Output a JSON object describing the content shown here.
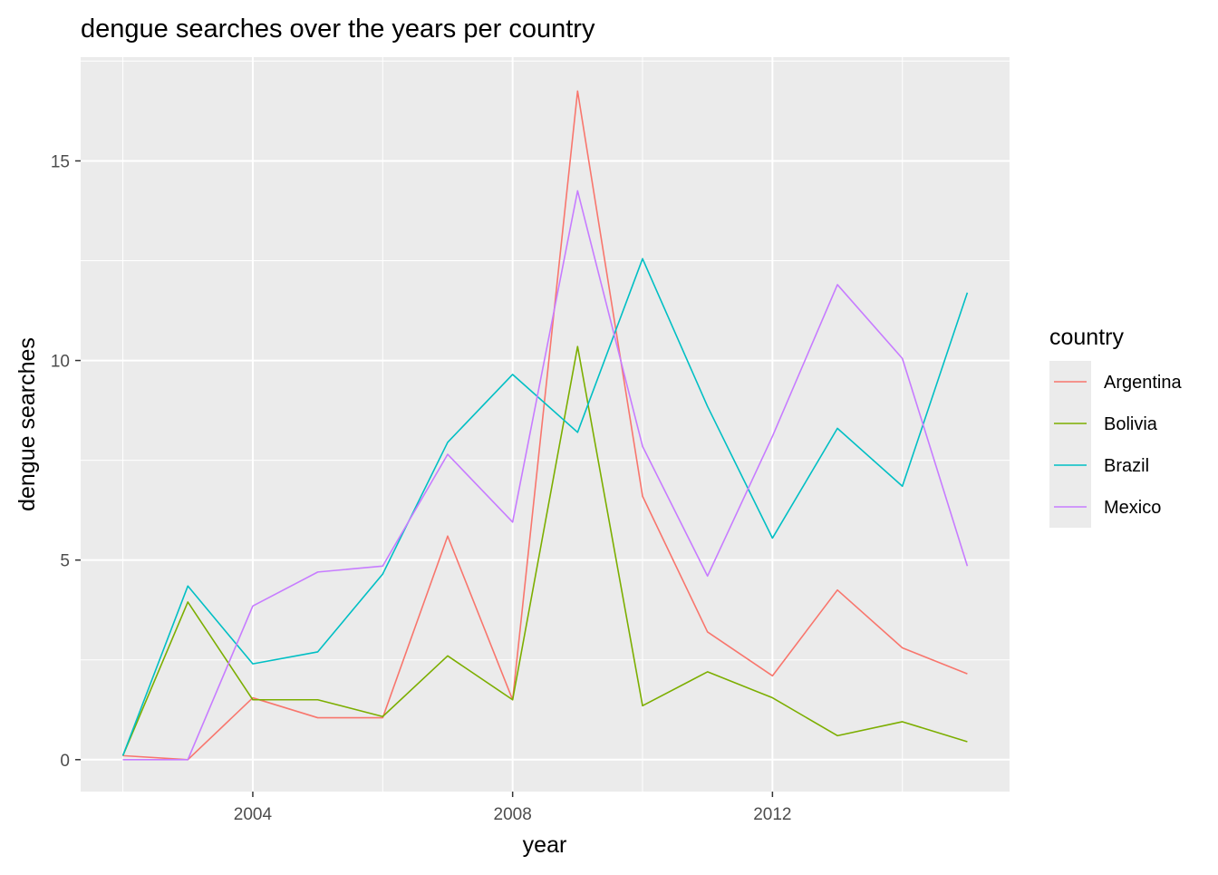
{
  "chart_data": {
    "type": "line",
    "title": "dengue searches over the years per country",
    "xlabel": "year",
    "ylabel": "dengue searches",
    "x": [
      2002,
      2003,
      2004,
      2005,
      2006,
      2007,
      2008,
      2009,
      2010,
      2011,
      2012,
      2013,
      2014,
      2015
    ],
    "xlim": [
      2001.35,
      2015.65
    ],
    "ylim": [
      -0.8,
      17.6
    ],
    "x_ticks": [
      2004,
      2008,
      2012
    ],
    "y_ticks": [
      0,
      5,
      10,
      15
    ],
    "grid": true,
    "legend": {
      "title": "country",
      "position": "right"
    },
    "series": [
      {
        "name": "Argentina",
        "color": "#F8766D",
        "values": [
          0.1,
          0.0,
          1.55,
          1.05,
          1.05,
          5.6,
          1.5,
          16.75,
          6.6,
          3.2,
          2.1,
          4.25,
          2.8,
          2.15
        ]
      },
      {
        "name": "Bolivia",
        "color": "#7CAE00",
        "values": [
          0.1,
          3.95,
          1.5,
          1.5,
          1.08,
          2.6,
          1.5,
          10.35,
          1.35,
          2.2,
          1.55,
          0.6,
          0.95,
          0.45
        ]
      },
      {
        "name": "Brazil",
        "color": "#00BFC4",
        "values": [
          0.1,
          4.35,
          2.4,
          2.7,
          4.65,
          7.95,
          9.65,
          8.2,
          12.55,
          8.85,
          5.55,
          8.3,
          6.85,
          11.7
        ]
      },
      {
        "name": "Mexico",
        "color": "#C77CFF",
        "values": [
          0.0,
          0.0,
          3.85,
          4.7,
          4.85,
          7.65,
          5.95,
          14.25,
          7.85,
          4.6,
          8.1,
          11.9,
          10.05,
          4.85
        ]
      }
    ]
  }
}
